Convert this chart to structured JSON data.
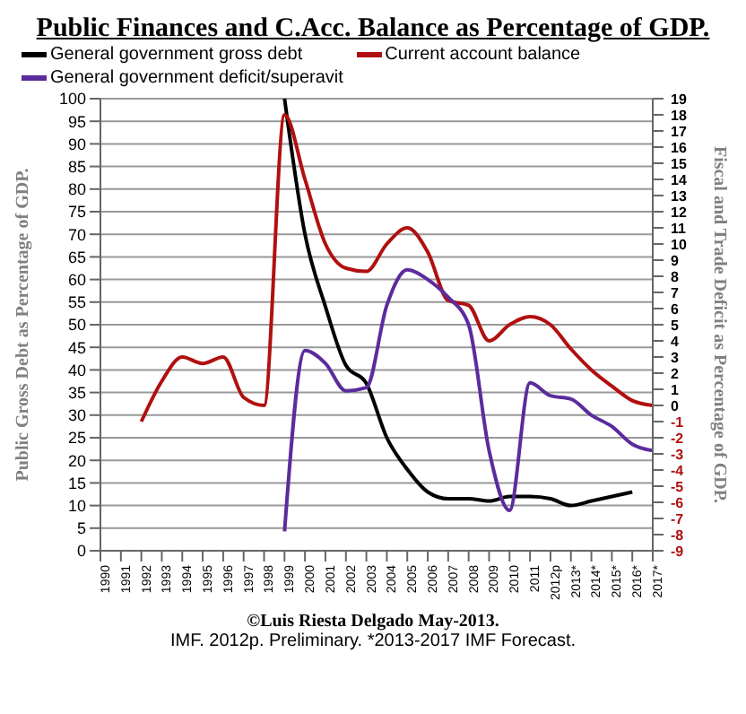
{
  "chart_data": {
    "type": "line",
    "title": "Public Finances and C.Acc. Balance as Percentage of GDP.",
    "ylabel": "Public Gross Debt as Percentage of GDP.",
    "y2label": "Fiscal and Trade Deficit as Percentage of GDP.",
    "annotations": [
      "©Luis Riesta Delgado May-2013.",
      "IMF. 2012p. Preliminary. *2013-2017 IMF Forecast."
    ],
    "categories": [
      "1990",
      "1991",
      "1992",
      "1993",
      "1994",
      "1995",
      "1996",
      "1997",
      "1998",
      "1999",
      "2000",
      "2001",
      "2002",
      "2003",
      "2004",
      "2005",
      "2006",
      "2007",
      "2008",
      "2009",
      "2010",
      "2011",
      "2012p",
      "2013*",
      "2014*",
      "2015*",
      "2016*",
      "2017*"
    ],
    "series": [
      {
        "name": "General government gross debt",
        "color": "#000000",
        "values": [
          null,
          null,
          null,
          null,
          null,
          null,
          null,
          null,
          null,
          100,
          70,
          54,
          41,
          37,
          25,
          18,
          13,
          11.5,
          11.5,
          11,
          12,
          12,
          11.5,
          10,
          11,
          12,
          13,
          null
        ]
      },
      {
        "name": "Current account balance",
        "color": "#b01010",
        "axis": "y2",
        "values": [
          null,
          null,
          -1,
          1.5,
          3,
          2.6,
          3,
          0.5,
          0,
          18,
          14,
          10,
          8.5,
          8.3,
          10,
          11,
          9.5,
          6.5,
          6.2,
          4,
          5,
          5.5,
          5,
          3.5,
          2.2,
          1.2,
          0.3,
          0
        ]
      },
      {
        "name": "General government deficit/superavit",
        "color": "#5b2c9c",
        "axis": "y2",
        "values": [
          null,
          null,
          null,
          null,
          null,
          null,
          null,
          null,
          null,
          -7.8,
          3.4,
          2.6,
          0.9,
          1.1,
          6.2,
          8.4,
          7.8,
          6.7,
          5,
          -2.8,
          -6.5,
          1.4,
          0.6,
          0.4,
          -0.6,
          -1.3,
          -2.4,
          -2.8
        ]
      }
    ],
    "ylim": [
      0,
      100
    ],
    "yticks": [
      0,
      5,
      10,
      15,
      20,
      25,
      30,
      35,
      40,
      45,
      50,
      55,
      60,
      65,
      70,
      75,
      80,
      85,
      90,
      95,
      100
    ],
    "y2lim": [
      -9,
      19
    ],
    "y2ticks": [
      -9,
      -8,
      -7,
      -6,
      -5,
      -4,
      -3,
      -2,
      -1,
      0,
      1,
      2,
      3,
      4,
      5,
      6,
      7,
      8,
      9,
      10,
      11,
      12,
      13,
      14,
      15,
      16,
      17,
      18,
      19
    ],
    "grid": "y",
    "legend": "top",
    "marker": "none",
    "line_style": "solid"
  }
}
